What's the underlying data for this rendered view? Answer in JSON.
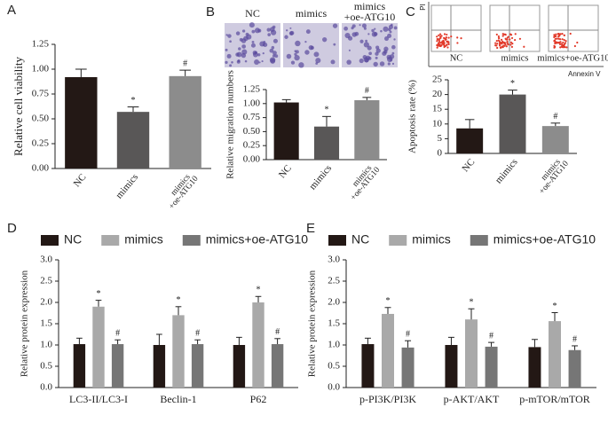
{
  "chart_data": [
    {
      "type": "bar",
      "panel": "A",
      "y_label": "Relative cell viability",
      "categories": [
        "NC",
        "mimics",
        [
          "mimics",
          "+oe-ATG10"
        ]
      ],
      "values": [
        0.92,
        0.57,
        0.93
      ],
      "errors": [
        0.08,
        0.05,
        0.06
      ],
      "annotations": [
        null,
        "*",
        "#"
      ],
      "colors": [
        "#231815",
        "#595757",
        "#8c8c8c"
      ],
      "ylim": [
        0,
        1.25
      ],
      "yticks": [
        {
          "value": 0,
          "label": "0.00"
        },
        {
          "value": 0.25,
          "label": "0.25"
        },
        {
          "value": 0.5,
          "label": "0.50"
        },
        {
          "value": 0.75,
          "label": "0.75"
        },
        {
          "value": 1,
          "label": "1.00"
        },
        {
          "value": 1.25,
          "label": "1.25"
        }
      ]
    },
    {
      "type": "bar",
      "panel": "B",
      "y_label": "Relative migration numbers",
      "image_labels": [
        "NC",
        "mimics",
        [
          "mimics",
          "+oe-ATG10"
        ]
      ],
      "categories": [
        "NC",
        "mimics",
        [
          "mimics",
          "+oe-ATG10"
        ]
      ],
      "values": [
        1.02,
        0.59,
        1.06
      ],
      "errors": [
        0.05,
        0.18,
        0.05
      ],
      "annotations": [
        null,
        "*",
        "#"
      ],
      "colors": [
        "#231815",
        "#595757",
        "#8c8c8c"
      ],
      "ylim": [
        0,
        1.25
      ],
      "yticks": [
        {
          "value": 0,
          "label": "0.00"
        },
        {
          "value": 0.25,
          "label": "0.25"
        },
        {
          "value": 0.5,
          "label": "0.50"
        },
        {
          "value": 0.75,
          "label": "0.75"
        },
        {
          "value": 1,
          "label": "1.00"
        },
        {
          "value": 1.25,
          "label": "1.25"
        }
      ]
    },
    {
      "type": "bar",
      "panel": "C",
      "y_label": "Apoptosis rate (%)",
      "plot_labels": [
        "NC",
        "mimics",
        "mimics+oe-ATG10"
      ],
      "plot_x_label": "Annexin V",
      "plot_y_label": "PI",
      "categories": [
        "NC",
        "mimics",
        [
          "mimics",
          "+oe-ATG10"
        ]
      ],
      "values": [
        8.5,
        20,
        9.3
      ],
      "errors": [
        3,
        1.5,
        1
      ],
      "annotations": [
        null,
        "*",
        "#"
      ],
      "colors": [
        "#231815",
        "#595757",
        "#8c8c8c"
      ],
      "ylim": [
        0,
        25
      ],
      "yticks": [
        0,
        5,
        10,
        15,
        20,
        25
      ]
    },
    {
      "type": "grouped_bar",
      "panel": "D",
      "y_label": "Relative protein expression",
      "categories": [
        "LC3-II/LC3-I",
        "Beclin-1",
        "P62"
      ],
      "series": [
        {
          "name": "NC",
          "color": "#231815",
          "values": [
            1.02,
            1.0,
            1.0
          ],
          "errors": [
            0.14,
            0.25,
            0.18
          ]
        },
        {
          "name": "mimics",
          "color": "#a9a9a9",
          "values": [
            1.9,
            1.7,
            2.0
          ],
          "errors": [
            0.15,
            0.2,
            0.14
          ],
          "annotations": [
            "*",
            "*",
            "*"
          ]
        },
        {
          "name": "mimics+oe-ATG10",
          "color": "#767676",
          "values": [
            1.02,
            1.02,
            1.02
          ],
          "errors": [
            0.1,
            0.1,
            0.13
          ],
          "annotations": [
            "#",
            "#",
            "#"
          ]
        }
      ],
      "ylim": [
        0,
        3
      ],
      "yticks": [
        {
          "value": 0,
          "label": "0.0"
        },
        0.5,
        {
          "value": 1,
          "label": "1.0"
        },
        1.5,
        {
          "value": 2,
          "label": "2.0"
        },
        2.5,
        {
          "value": 3,
          "label": "3.0"
        }
      ]
    },
    {
      "type": "grouped_bar",
      "panel": "E",
      "y_label": "Relative protein expression",
      "categories": [
        "p-PI3K/PI3K",
        "p-AKT/AKT",
        "p-mTOR/mTOR"
      ],
      "series": [
        {
          "name": "NC",
          "color": "#231815",
          "values": [
            1.02,
            1.0,
            0.95
          ],
          "errors": [
            0.14,
            0.18,
            0.18
          ]
        },
        {
          "name": "mimics",
          "color": "#a9a9a9",
          "values": [
            1.73,
            1.6,
            1.56
          ],
          "errors": [
            0.15,
            0.25,
            0.2
          ],
          "annotations": [
            "*",
            "*",
            "*"
          ]
        },
        {
          "name": "mimics+oe-ATG10",
          "color": "#767676",
          "values": [
            0.94,
            0.96,
            0.88
          ],
          "errors": [
            0.16,
            0.1,
            0.1
          ],
          "annotations": [
            "#",
            "#",
            "#"
          ]
        }
      ],
      "ylim": [
        0,
        3
      ],
      "yticks": [
        {
          "value": 0,
          "label": "0.0"
        },
        0.5,
        {
          "value": 1,
          "label": "1.0"
        },
        1.5,
        {
          "value": 2,
          "label": "2.0"
        },
        2.5,
        {
          "value": 3,
          "label": "3.0"
        }
      ]
    }
  ]
}
